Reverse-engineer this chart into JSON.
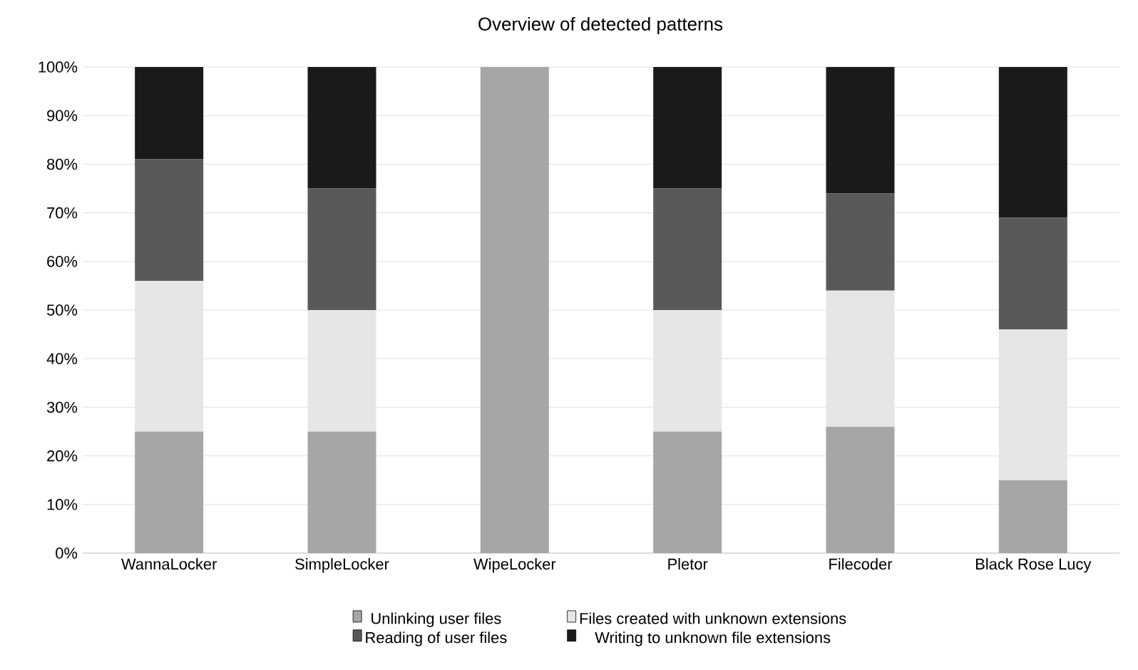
{
  "chart_data": {
    "type": "bar",
    "stacked": true,
    "title": "Overview of detected patterns",
    "categories": [
      "WannaLocker",
      "SimpleLocker",
      "WipeLocker",
      "Pletor",
      "Filecoder",
      "Black Rose Lucy"
    ],
    "series": [
      {
        "name": "Unlinking user files",
        "color": "#a6a6a6",
        "values": [
          25,
          25,
          100,
          25,
          26,
          15
        ]
      },
      {
        "name": "Files created with unknown extensions",
        "color": "#e6e6e6",
        "values": [
          31,
          25,
          0,
          25,
          28,
          31
        ]
      },
      {
        "name": "Reading of user files",
        "color": "#595959",
        "values": [
          25,
          25,
          0,
          25,
          20,
          23
        ]
      },
      {
        "name": "Writing to unknown file extensions",
        "color": "#1a1a1a",
        "values": [
          19,
          25,
          0,
          25,
          26,
          31
        ]
      }
    ],
    "ylim": [
      0,
      100
    ],
    "yticks": [
      {
        "value": 0,
        "label": "0%"
      },
      {
        "value": 10,
        "label": "10%"
      },
      {
        "value": 20,
        "label": "20%"
      },
      {
        "value": 30,
        "label": "30%"
      },
      {
        "value": 40,
        "label": "40%"
      },
      {
        "value": 50,
        "label": "50%"
      },
      {
        "value": 60,
        "label": "60%"
      },
      {
        "value": 70,
        "label": "70%"
      },
      {
        "value": 80,
        "label": "80%"
      },
      {
        "value": 90,
        "label": "90%"
      },
      {
        "value": 100,
        "label": "100%"
      }
    ],
    "grid": "y",
    "legend": "bottom"
  }
}
